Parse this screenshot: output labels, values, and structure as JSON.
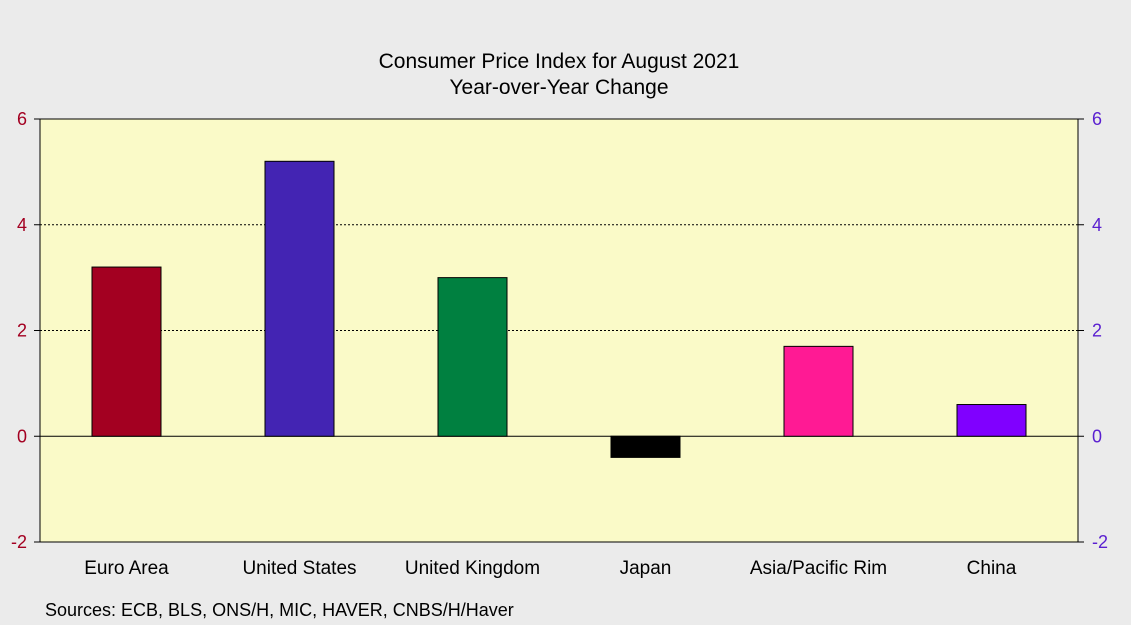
{
  "chart_data": {
    "type": "bar",
    "title": "Consumer Price Index for August 2021",
    "subtitle": "Year-over-Year Change",
    "categories": [
      "Euro Area",
      "United States",
      "United Kingdom",
      "Japan",
      "Asia/Pacific Rim",
      "China"
    ],
    "values": [
      3.2,
      5.2,
      3.0,
      -0.4,
      1.7,
      0.6
    ],
    "colors": [
      "#a30021",
      "#4324b3",
      "#008040",
      "#000000",
      "#ff1a94",
      "#8000ff"
    ],
    "ylim": [
      -2,
      6
    ],
    "yticks": [
      "-2",
      "0",
      "2",
      "4",
      "6"
    ],
    "left_axis_color": "#a30021",
    "right_axis_color": "#5a1fd0",
    "plot_background": "#fafac8",
    "gridlines": [
      2,
      4
    ],
    "source": "Sources:  ECB, BLS, ONS/H, MIC, HAVER, CNBS/H/Haver"
  }
}
